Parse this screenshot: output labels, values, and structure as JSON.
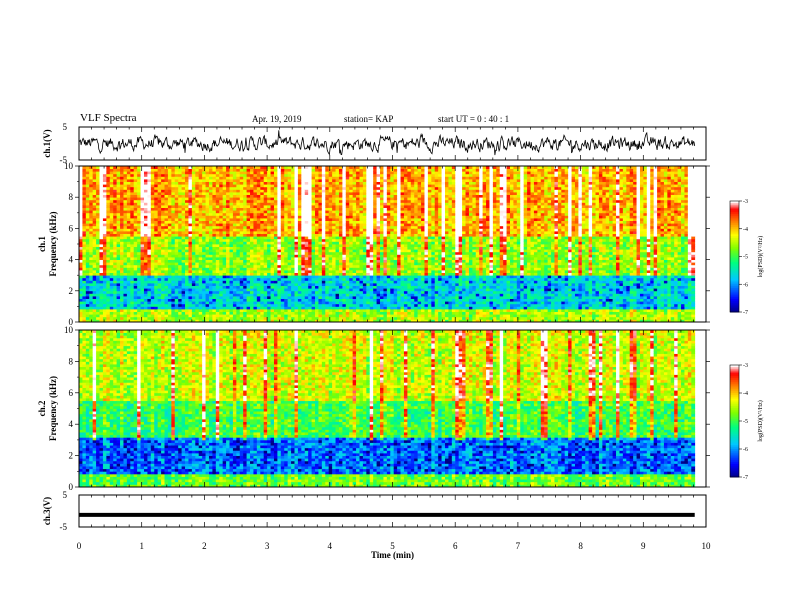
{
  "header": {
    "title": "VLF Spectra",
    "date": "Apr. 19, 2019",
    "station": "station= KAP",
    "start": "start  UT  =   0  : 40 : 1"
  },
  "colors": {
    "colormap": [
      "#000080",
      "#0000ff",
      "#00c8ff",
      "#00ff80",
      "#7fff00",
      "#ffff00",
      "#ff8000",
      "#ff0000",
      "#ffffff"
    ],
    "waveform": "#000000"
  },
  "chart_data": [
    {
      "type": "line",
      "name": "ch1-waveform",
      "ylabel": "ch.1(V)",
      "ylim": [
        -5,
        5
      ],
      "yticks": [
        "5",
        "-5"
      ],
      "xlim": [
        0,
        10
      ],
      "note_visible": "noisy waveform mostly between -2 and 2 V"
    },
    {
      "type": "heatmap",
      "name": "ch1-spectrogram",
      "ylabel": "ch.1\nFrequency  (kHz)",
      "ylim": [
        0,
        10
      ],
      "yticks": [
        "0",
        "2",
        "4",
        "6",
        "8",
        "10"
      ],
      "xlim": [
        0,
        10
      ],
      "colorbar": {
        "label": "log(PSD)(V²/Hz)",
        "ticks": [
          "-3",
          "-4",
          "-5",
          "-6",
          "-7"
        ],
        "range": [
          -7,
          -3
        ]
      },
      "bands": [
        {
          "from": 0,
          "to": 0.8,
          "level": -4.5
        },
        {
          "from": 0.8,
          "to": 3.0,
          "level": -5.6
        },
        {
          "from": 3.0,
          "to": 5.5,
          "level": -4.6
        },
        {
          "from": 5.5,
          "to": 10,
          "level": -3.9
        }
      ]
    },
    {
      "type": "heatmap",
      "name": "ch2-spectrogram",
      "ylabel": "ch.2\nFrequency  (kHz)",
      "ylim": [
        0,
        10
      ],
      "yticks": [
        "0",
        "2",
        "4",
        "6",
        "8",
        "10"
      ],
      "xlim": [
        0,
        10
      ],
      "colorbar": {
        "label": "log(PSD)(V²/Hz)",
        "ticks": [
          "-3",
          "-4",
          "-5",
          "-6",
          "-7"
        ],
        "range": [
          -7,
          -3
        ]
      },
      "bands": [
        {
          "from": 0,
          "to": 0.8,
          "level": -4.8
        },
        {
          "from": 0.8,
          "to": 3.2,
          "level": -6.1
        },
        {
          "from": 3.2,
          "to": 5.5,
          "level": -5.0
        },
        {
          "from": 5.5,
          "to": 10,
          "level": -4.4
        }
      ]
    },
    {
      "type": "line",
      "name": "ch3-waveform",
      "ylabel": "ch.3(V)",
      "ylim": [
        -5,
        5
      ],
      "yticks": [
        "5",
        "-5"
      ],
      "xlim": [
        0,
        10
      ],
      "constant_value": -1.2
    }
  ],
  "xaxis": {
    "label": "Time  (min)",
    "ticks": [
      "0",
      "1",
      "2",
      "3",
      "4",
      "5",
      "6",
      "7",
      "8",
      "9",
      "10"
    ]
  }
}
